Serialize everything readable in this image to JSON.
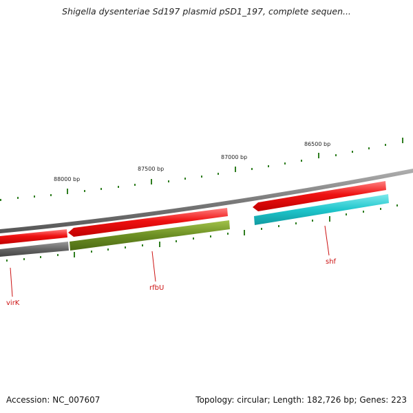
{
  "title": "Shigella dysenteriae Sd197 plasmid pSD1_197, complete sequen...",
  "footer": {
    "accession": "Accession: NC_007607",
    "summary": "Topology: circular; Length: 182,726 bp; Genes: 223"
  },
  "ruler_labels": [
    "88000 bp",
    "87500 bp",
    "87000 bp",
    "86500 bp"
  ],
  "genes": [
    "virK",
    "rfbU",
    "shf"
  ],
  "colors": {
    "backbone": "#8a8a8a",
    "gene_red": "#ee1111",
    "gene_olive": "#6b8e23",
    "gene_cyan": "#1fc6cc",
    "gene_gray": "#666666",
    "tick_green": "#2e7d1f",
    "label_red": "#cc1111"
  }
}
